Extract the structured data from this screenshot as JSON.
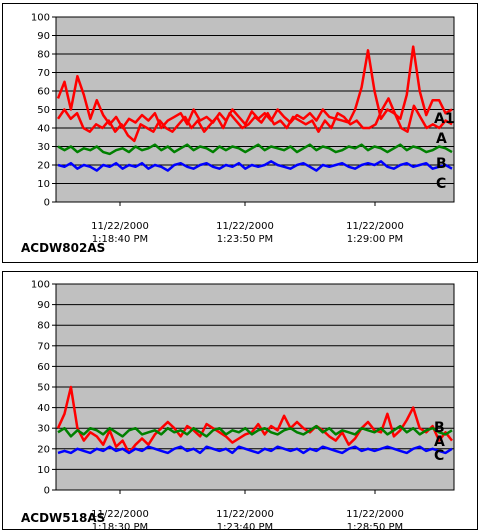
{
  "chart_data": [
    {
      "type": "line",
      "name": "ACDW802AS",
      "ylim": [
        0,
        100
      ],
      "yticks": [
        0,
        10,
        20,
        30,
        40,
        50,
        60,
        70,
        80,
        90,
        100
      ],
      "grid": true,
      "plot_bg": "#c0c0c0",
      "x_tick_labels": [
        {
          "date": "11/22/2000",
          "time": "1:18:40 PM"
        },
        {
          "date": "11/22/2000",
          "time": "1:23:50 PM"
        },
        {
          "date": "11/22/2000",
          "time": "1:29:00 PM"
        }
      ],
      "series": [
        {
          "name": "A1",
          "color": "#ff0000",
          "values": [
            56,
            65,
            50,
            68,
            58,
            45,
            55,
            47,
            42,
            46,
            40,
            45,
            43,
            47,
            44,
            48,
            40,
            44,
            46,
            48,
            42,
            50,
            44,
            46,
            43,
            48,
            44,
            50,
            46,
            42,
            49,
            45,
            48,
            44,
            50,
            46,
            43,
            47,
            45,
            48,
            44,
            50,
            46,
            45,
            44,
            43,
            50,
            62,
            82,
            60,
            45,
            50,
            48,
            45,
            58,
            84,
            60,
            47,
            55,
            55,
            48,
            50
          ]
        },
        {
          "name": "A",
          "color": "#ff0000",
          "values": [
            45,
            50,
            45,
            48,
            40,
            38,
            42,
            40,
            44,
            38,
            42,
            36,
            33,
            42,
            40,
            38,
            44,
            40,
            38,
            42,
            46,
            40,
            44,
            38,
            42,
            46,
            40,
            48,
            44,
            40,
            42,
            46,
            43,
            48,
            42,
            44,
            40,
            46,
            44,
            42,
            44,
            38,
            44,
            40,
            48,
            46,
            42,
            44,
            40,
            40,
            42,
            50,
            56,
            48,
            40,
            38,
            52,
            46,
            40,
            42,
            40,
            44,
            42
          ]
        },
        {
          "name": "B",
          "color": "#008000",
          "values": [
            30,
            28,
            30,
            27,
            29,
            28,
            30,
            27,
            26,
            28,
            29,
            27,
            30,
            28,
            29,
            31,
            28,
            30,
            27,
            29,
            31,
            28,
            30,
            29,
            27,
            30,
            28,
            30,
            29,
            27,
            29,
            31,
            28,
            30,
            29,
            28,
            30,
            27,
            29,
            31,
            28,
            30,
            29,
            27,
            28,
            30,
            29,
            31,
            28,
            30,
            29,
            27,
            29,
            31,
            28,
            30,
            29,
            27,
            28,
            30,
            29,
            27
          ]
        },
        {
          "name": "C",
          "color": "#0000ff",
          "values": [
            20,
            19,
            21,
            18,
            20,
            19,
            17,
            20,
            19,
            21,
            18,
            20,
            19,
            21,
            18,
            20,
            19,
            17,
            20,
            21,
            19,
            18,
            20,
            21,
            19,
            18,
            20,
            19,
            21,
            18,
            20,
            19,
            20,
            22,
            20,
            19,
            18,
            20,
            21,
            19,
            17,
            20,
            19,
            20,
            21,
            19,
            18,
            20,
            21,
            20,
            22,
            19,
            18,
            20,
            21,
            19,
            20,
            21,
            18,
            19,
            20,
            18
          ]
        }
      ],
      "series_labels": [
        "A1",
        "A",
        "B",
        "C"
      ]
    },
    {
      "type": "line",
      "name": "ACDW518AS",
      "ylim": [
        0,
        100
      ],
      "yticks": [
        0,
        10,
        20,
        30,
        40,
        50,
        60,
        70,
        80,
        90,
        100
      ],
      "grid": true,
      "plot_bg": "#c0c0c0",
      "x_tick_labels": [
        {
          "date": "11/22/2000",
          "time": "1:18:30 PM"
        },
        {
          "date": "11/22/2000",
          "time": "1:23:40 PM"
        },
        {
          "date": "11/22/2000",
          "time": "1:28:50 PM"
        }
      ],
      "series": [
        {
          "name": "A",
          "color": "#ff0000",
          "values": [
            30,
            37,
            50,
            30,
            24,
            28,
            26,
            22,
            29,
            21,
            24,
            18,
            22,
            25,
            22,
            27,
            30,
            33,
            30,
            26,
            31,
            29,
            26,
            32,
            30,
            28,
            26,
            23,
            25,
            27,
            28,
            32,
            27,
            31,
            29,
            36,
            30,
            33,
            30,
            28,
            31,
            29,
            26,
            24,
            28,
            22,
            25,
            30,
            33,
            29,
            28,
            37,
            26,
            29,
            34,
            40,
            30,
            28,
            31,
            24,
            28,
            24
          ]
        },
        {
          "name": "B",
          "color": "#008000",
          "values": [
            28,
            30,
            26,
            29,
            27,
            30,
            29,
            27,
            30,
            28,
            26,
            29,
            30,
            27,
            28,
            29,
            27,
            30,
            28,
            29,
            27,
            30,
            28,
            26,
            29,
            30,
            27,
            29,
            28,
            30,
            27,
            29,
            30,
            28,
            27,
            29,
            30,
            28,
            27,
            29,
            31,
            28,
            30,
            27,
            29,
            28,
            27,
            30,
            29,
            28,
            30,
            27,
            29,
            31,
            28,
            30,
            27,
            29,
            30,
            28,
            27,
            29
          ]
        },
        {
          "name": "C",
          "color": "#0000ff",
          "values": [
            18,
            19,
            18,
            20,
            19,
            18,
            20,
            19,
            21,
            19,
            20,
            18,
            20,
            19,
            21,
            20,
            19,
            18,
            20,
            21,
            19,
            20,
            18,
            21,
            20,
            19,
            20,
            18,
            21,
            20,
            19,
            18,
            20,
            19,
            21,
            20,
            19,
            20,
            18,
            20,
            19,
            21,
            20,
            19,
            18,
            20,
            21,
            19,
            20,
            19,
            20,
            21,
            20,
            19,
            18,
            20,
            21,
            19,
            20,
            19,
            18,
            20
          ]
        }
      ],
      "series_labels": [
        "B",
        "A",
        "C"
      ]
    }
  ]
}
